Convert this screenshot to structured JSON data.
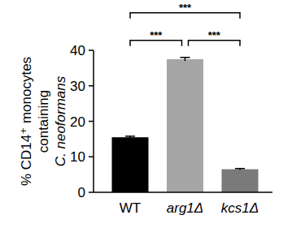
{
  "chart_data": {
    "type": "bar",
    "y_label": [
      "% CD14⁺ monocytes",
      "containing",
      "C. neoformans"
    ],
    "categories": [
      "WT",
      "arg1Δ",
      "kcs1Δ"
    ],
    "values": [
      15.5,
      37.5,
      6.5
    ],
    "errors": [
      0.3,
      0.5,
      0.2
    ],
    "colors": [
      "#000000",
      "#a6a6a6",
      "#7a7a7a"
    ],
    "ylim": [
      0,
      40
    ],
    "yticks": [
      0,
      10,
      20,
      30,
      40
    ],
    "grid": false,
    "annotations": [
      {
        "from": 0,
        "to": 1,
        "label": "***"
      },
      {
        "from": 1,
        "to": 2,
        "label": "***"
      },
      {
        "from": 0,
        "to": 2,
        "label": "***"
      }
    ]
  }
}
